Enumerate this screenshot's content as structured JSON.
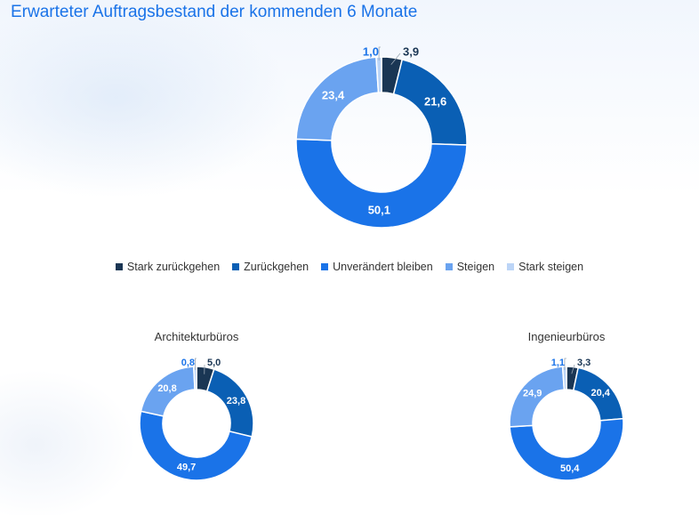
{
  "title": "Erwarteter Auftragsbestand der kommenden 6 Monate",
  "legend": [
    {
      "label": "Stark zurückgehen",
      "color": "#1a3654"
    },
    {
      "label": "Zurückgehen",
      "color": "#0a5fb4"
    },
    {
      "label": "Unverändert bleiben",
      "color": "#1a73e8"
    },
    {
      "label": "Steigen",
      "color": "#6aa3f0"
    },
    {
      "label": "Stark steigen",
      "color": "#bcd5f7"
    }
  ],
  "chart_data": [
    {
      "type": "pie",
      "title": "",
      "categories": [
        "Stark zurückgehen",
        "Zurückgehen",
        "Unverändert bleiben",
        "Steigen",
        "Stark steigen"
      ],
      "values": [
        3.9,
        21.6,
        50.1,
        23.4,
        1.0
      ],
      "labels": [
        "3,9",
        "21,6",
        "50,1",
        "23,4",
        "1,0"
      ]
    },
    {
      "type": "pie",
      "title": "Architekturbüros",
      "categories": [
        "Stark zurückgehen",
        "Zurückgehen",
        "Unverändert bleiben",
        "Steigen",
        "Stark steigen"
      ],
      "values": [
        5.0,
        23.8,
        49.7,
        20.8,
        0.8
      ],
      "labels": [
        "5,0",
        "23,8",
        "49,7",
        "20,8",
        "0,8"
      ]
    },
    {
      "type": "pie",
      "title": "Ingenieurbüros",
      "categories": [
        "Stark zurückgehen",
        "Zurückgehen",
        "Unverändert bleiben",
        "Steigen",
        "Stark steigen"
      ],
      "values": [
        3.3,
        20.4,
        50.4,
        24.9,
        1.1
      ],
      "labels": [
        "3,3",
        "20,4",
        "50,4",
        "24,9",
        "1,1"
      ]
    }
  ]
}
